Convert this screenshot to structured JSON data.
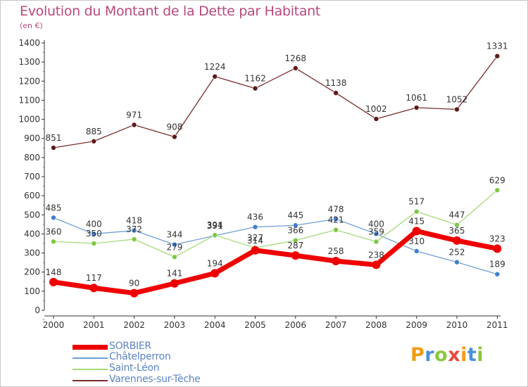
{
  "header": {
    "title": "Evolution du Montant de la Dette par Habitant",
    "subtitle": "(en €)"
  },
  "logo": {
    "text": "Proxiti",
    "colors": [
      "#f39c12",
      "#4a90d9",
      "#8cc63f",
      "#e74c3c",
      "#f39c12",
      "#4a90d9",
      "#8cc63f"
    ]
  },
  "chart_data": {
    "type": "line",
    "title": "Evolution du Montant de la Dette par Habitant",
    "subtitle": "(en €)",
    "xlabel": "",
    "ylabel": "",
    "ylim": [
      0,
      1400
    ],
    "yticks": [
      0,
      100,
      200,
      300,
      400,
      500,
      600,
      700,
      800,
      900,
      1000,
      1100,
      1200,
      1300,
      1400
    ],
    "grid": false,
    "legend_position": "bottom-left",
    "categories": [
      "2000",
      "2001",
      "2002",
      "2003",
      "2004",
      "2005",
      "2006",
      "2007",
      "2008",
      "2009",
      "2010",
      "2011"
    ],
    "series": [
      {
        "name": "Varennes-sur-Tèche",
        "color": "#7a2d2d",
        "marker": "#5e1a1a",
        "width": 1.3,
        "values": [
          851,
          885,
          971,
          908,
          1224,
          1162,
          1268,
          1138,
          1002,
          1061,
          1052,
          1331
        ]
      },
      {
        "name": "Châtelperron",
        "color": "#6f9fd8",
        "marker": "#3f7fcf",
        "width": 1.3,
        "values": [
          485,
          400,
          418,
          344,
          391,
          436,
          445,
          478,
          400,
          310,
          252,
          189
        ]
      },
      {
        "name": "Saint-Léon",
        "color": "#a6db78",
        "marker": "#7dc843",
        "width": 1.3,
        "values": [
          360,
          350,
          372,
          279,
          394,
          327,
          366,
          421,
          359,
          517,
          447,
          629
        ]
      },
      {
        "name": "SORBIER",
        "color": "#ee0000",
        "marker": "#ee0000",
        "width": 7,
        "values": [
          148,
          117,
          90,
          141,
          194,
          314,
          287,
          258,
          238,
          415,
          365,
          323
        ]
      }
    ]
  },
  "legend": {
    "items": [
      {
        "label": "SORBIER",
        "color": "#ee0000"
      },
      {
        "label": "Châtelperron",
        "color": "#6f9fd8"
      },
      {
        "label": "Saint-Léon",
        "color": "#a6db78"
      },
      {
        "label": "Varennes-sur-Tèche",
        "color": "#7a2d2d"
      }
    ]
  }
}
